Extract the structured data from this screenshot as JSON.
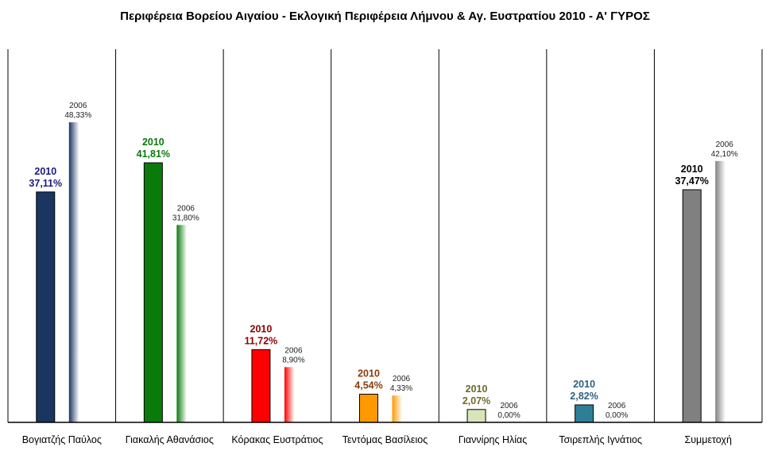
{
  "chart_data": {
    "type": "bar",
    "title": "Περιφέρεια Βορείου Αιγαίου - Εκλογική Περιφέρεια Λήμνου & Αγ. Ευστρατίου 2010 - Α' ΓΥΡΟΣ",
    "ylim": [
      0,
      60
    ],
    "grid": false,
    "categories": [
      "Βογιατζής Παύλος",
      "Γιακαλής Αθανάσιος",
      "Κόρακας Ευστράτιος",
      "Τεντόμας Βασίλειος",
      "Γιαννίρης Ηλίας",
      "Τσιρεπλής Ιγνάτιος",
      "Συμμετοχή"
    ],
    "series": [
      {
        "name": "2010",
        "values": [
          37.11,
          41.81,
          11.72,
          4.54,
          2.07,
          2.82,
          37.47
        ],
        "labels": [
          "37,11%",
          "41,81%",
          "11,72%",
          "4,54%",
          "2,07%",
          "2,82%",
          "37,47%"
        ]
      },
      {
        "name": "2006",
        "values": [
          48.33,
          31.8,
          8.9,
          4.33,
          0.0,
          0.0,
          42.1
        ],
        "labels": [
          "48,33%",
          "31,80%",
          "8,90%",
          "4,33%",
          "0,00%",
          "0,00%",
          "42,10%"
        ]
      }
    ],
    "colors_2010": [
      "#1a3660",
      "#0a7a0a",
      "#ff0000",
      "#ff9900",
      "#d8e4bc",
      "#2e7f96",
      "#808080"
    ],
    "label_colors_2010": [
      "#1a1a80",
      "#0a7a0a",
      "#8b0000",
      "#8b3a0a",
      "#6b6b2a",
      "#2e6080",
      "#000000"
    ]
  }
}
